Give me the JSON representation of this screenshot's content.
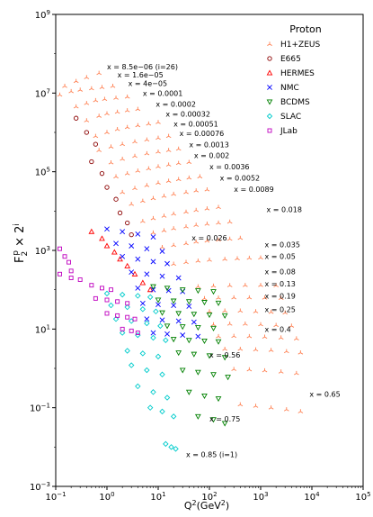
{
  "chart_data": {
    "type": "scatter",
    "title": "",
    "xlabel": "Q^2(GeV^2)",
    "ylabel": "F_2^p × 2^i",
    "xscale": "log",
    "yscale": "log",
    "xlim": [
      0.1,
      100000
    ],
    "ylim": [
      0.001,
      1000000000
    ],
    "x_ticks": [
      "10^-1",
      "10^0",
      "10^1",
      "10^2",
      "10^3",
      "10^4",
      "10^5"
    ],
    "y_ticks": [
      "10^-3",
      "10^-1",
      "10^1",
      "10^3",
      "10^5",
      "10^7",
      "10^9"
    ],
    "grid": false,
    "legend": {
      "title": "Proton",
      "placement": "top-right",
      "entries": [
        {
          "name": "H1+ZEUS",
          "marker": "tri",
          "color": "#ff7f50"
        },
        {
          "name": "E665",
          "marker": "circle",
          "color": "#8b0000"
        },
        {
          "name": "HERMES",
          "marker": "triangle-up",
          "color": "#ff0000"
        },
        {
          "name": "NMC",
          "marker": "x",
          "color": "#0000ff"
        },
        {
          "name": "BCDMS",
          "marker": "triangle-down",
          "color": "#008000"
        },
        {
          "name": "SLAC",
          "marker": "diamond",
          "color": "#00cccc"
        },
        {
          "name": "JLab",
          "marker": "square",
          "color": "#bf00bf"
        }
      ]
    },
    "bins": [
      {
        "label": "x = 8.5e−06 (i=26)",
        "lx": 1.0,
        "ly": 40000000,
        "h1": [
          [
            0.15,
            15000000
          ],
          [
            0.25,
            20000000
          ],
          [
            0.4,
            25000000
          ],
          [
            0.7,
            32000000
          ]
        ]
      },
      {
        "label": "x = 1.6e−05",
        "lx": 1.6,
        "ly": 25000000,
        "h1": [
          [
            0.12,
            9000000
          ],
          [
            0.2,
            11000000
          ],
          [
            0.3,
            12000000
          ],
          [
            0.5,
            13000000
          ],
          [
            0.8,
            14000000
          ],
          [
            1.3,
            15000000
          ]
        ]
      },
      {
        "label": "x = 4e−05",
        "lx": 2.6,
        "ly": 15000000,
        "h1": [
          [
            0.25,
            4500000
          ],
          [
            0.4,
            5500000
          ],
          [
            0.6,
            6500000
          ],
          [
            0.9,
            7000000
          ],
          [
            1.5,
            7500000
          ],
          [
            2.5,
            8000000
          ]
        ]
      },
      {
        "label": "x = 0.0001",
        "lx": 5.0,
        "ly": 8500000,
        "h1": [
          [
            0.4,
            2000000
          ],
          [
            0.7,
            2600000
          ],
          [
            1.0,
            3000000
          ],
          [
            1.6,
            3300000
          ],
          [
            2.5,
            3600000
          ],
          [
            4.0,
            3900000
          ]
        ]
      },
      {
        "label": "x = 0.0002",
        "lx": 9.0,
        "ly": 4500000,
        "h1": [
          [
            0.6,
            800000
          ],
          [
            1.0,
            1000000
          ],
          [
            1.6,
            1200000
          ],
          [
            2.5,
            1350000
          ],
          [
            4.0,
            1500000
          ],
          [
            6.5,
            1650000
          ],
          [
            10,
            1800000
          ]
        ]
      },
      {
        "label": "x = 0.00032",
        "lx": 14,
        "ly": 2500000,
        "h1": [
          [
            0.7,
            350000
          ],
          [
            1.2,
            430000
          ],
          [
            2.0,
            500000
          ],
          [
            3.5,
            580000
          ],
          [
            6.0,
            650000
          ],
          [
            10,
            720000
          ],
          [
            16,
            800000
          ]
        ]
      },
      {
        "label": "x = 0.00051",
        "lx": 20,
        "ly": 1400000,
        "h1": [
          [
            1.2,
            170000
          ],
          [
            2.0,
            210000
          ],
          [
            3.5,
            250000
          ],
          [
            6.0,
            290000
          ],
          [
            10,
            320000
          ],
          [
            16,
            350000
          ],
          [
            25,
            380000
          ]
        ]
      },
      {
        "label": "x = 0.00076",
        "lx": 26,
        "ly": 800000,
        "h1": [
          [
            1.5,
            75000
          ],
          [
            2.5,
            90000
          ],
          [
            4.0,
            105000
          ],
          [
            6.5,
            120000
          ],
          [
            10,
            135000
          ],
          [
            16,
            150000
          ],
          [
            25,
            165000
          ],
          [
            40,
            175000
          ]
        ]
      },
      {
        "label": "x = 0.0013",
        "lx": 40,
        "ly": 420000,
        "h1": [
          [
            2.0,
            30000
          ],
          [
            3.5,
            38000
          ],
          [
            6.0,
            45000
          ],
          [
            10,
            52000
          ],
          [
            16,
            58000
          ],
          [
            25,
            64000
          ],
          [
            40,
            70000
          ],
          [
            65,
            75000
          ]
        ]
      },
      {
        "label": "x = 0.002",
        "lx": 50,
        "ly": 220000,
        "h1": [
          [
            3.0,
            15000
          ],
          [
            5.0,
            18000
          ],
          [
            8.0,
            21000
          ],
          [
            13,
            24000
          ],
          [
            20,
            27000
          ],
          [
            35,
            30000
          ],
          [
            55,
            33000
          ],
          [
            90,
            35000
          ]
        ]
      },
      {
        "label": "x = 0.0036",
        "lx": 100,
        "ly": 115000,
        "h1": [
          [
            5,
            5500
          ],
          [
            8,
            6500
          ],
          [
            13,
            7500
          ],
          [
            20,
            8500
          ],
          [
            35,
            9500
          ],
          [
            55,
            10500
          ],
          [
            90,
            11500
          ],
          [
            150,
            12500
          ]
        ]
      },
      {
        "label": "x = 0.0052",
        "lx": 160,
        "ly": 60000,
        "h1": [
          [
            8,
            2800
          ],
          [
            13,
            3200
          ],
          [
            20,
            3600
          ],
          [
            35,
            4000
          ],
          [
            55,
            4400
          ],
          [
            90,
            4700
          ],
          [
            150,
            5000
          ],
          [
            250,
            5300
          ]
        ]
      },
      {
        "label": "x = 0.0089",
        "lx": 300,
        "ly": 31000,
        "h1": [
          [
            12,
            1200
          ],
          [
            20,
            1350
          ],
          [
            35,
            1500
          ],
          [
            55,
            1650
          ],
          [
            90,
            1750
          ],
          [
            150,
            1850
          ],
          [
            250,
            1950
          ],
          [
            400,
            2050
          ]
        ]
      },
      {
        "label": "x = 0.018",
        "lx": 1300,
        "ly": 9500,
        "h1": [
          [
            20,
            450
          ],
          [
            35,
            500
          ],
          [
            60,
            540
          ],
          [
            100,
            570
          ],
          [
            200,
            600
          ],
          [
            350,
            620
          ],
          [
            600,
            640
          ],
          [
            1000,
            650
          ]
        ]
      },
      {
        "label": "x = 0.026",
        "lx": 45,
        "ly": 1800,
        "h1": []
      },
      {
        "label": "x = 0.035",
        "lx": 1200,
        "ly": 1200,
        "h1": [
          [
            60,
            120
          ],
          [
            120,
            125
          ],
          [
            250,
            128
          ],
          [
            500,
            130
          ],
          [
            1000,
            130
          ],
          [
            2000,
            128
          ]
        ]
      },
      {
        "label": "x = 0.05",
        "lx": 1200,
        "ly": 600,
        "h1": [
          [
            80,
            60
          ],
          [
            150,
            62
          ],
          [
            300,
            63
          ],
          [
            600,
            63
          ],
          [
            1200,
            62
          ],
          [
            2500,
            61
          ]
        ]
      },
      {
        "label": "x = 0.08",
        "lx": 1200,
        "ly": 250,
        "h1": [
          [
            100,
            28
          ],
          [
            200,
            29
          ],
          [
            400,
            29
          ],
          [
            800,
            28
          ],
          [
            1600,
            27
          ],
          [
            3000,
            26
          ]
        ]
      },
      {
        "label": "x = 0.13",
        "lx": 1200,
        "ly": 120,
        "h1": [
          [
            120,
            13
          ],
          [
            250,
            13.5
          ],
          [
            500,
            13.5
          ],
          [
            1000,
            13
          ],
          [
            2000,
            12.5
          ],
          [
            4000,
            12
          ]
        ]
      },
      {
        "label": "x = 0.19",
        "lx": 1200,
        "ly": 60,
        "h1": [
          [
            150,
            6.5
          ],
          [
            300,
            6.6
          ],
          [
            600,
            6.5
          ],
          [
            1200,
            6.3
          ],
          [
            2500,
            6.0
          ],
          [
            5000,
            5.7
          ]
        ]
      },
      {
        "label": "x = 0.25",
        "lx": 1200,
        "ly": 27,
        "h1": [
          [
            200,
            3.1
          ],
          [
            400,
            3.1
          ],
          [
            800,
            3.0
          ],
          [
            1600,
            2.9
          ],
          [
            3200,
            2.7
          ],
          [
            6000,
            2.5
          ]
        ]
      },
      {
        "label": "x = 0.4",
        "lx": 1200,
        "ly": 8.5,
        "h1": [
          [
            300,
            0.95
          ],
          [
            600,
            0.93
          ],
          [
            1200,
            0.88
          ],
          [
            2500,
            0.82
          ],
          [
            5000,
            0.75
          ]
        ]
      },
      {
        "label": "x = 0.56",
        "lx": 100,
        "ly": 1.9,
        "h1": []
      },
      {
        "label": "x = 0.65",
        "lx": 9000,
        "ly": 0.19,
        "h1": [
          [
            400,
            0.12
          ],
          [
            800,
            0.11
          ],
          [
            1600,
            0.1
          ],
          [
            3200,
            0.09
          ],
          [
            6000,
            0.08
          ]
        ]
      },
      {
        "label": "x = 0.75",
        "lx": 100,
        "ly": 0.045,
        "h1": []
      },
      {
        "label": "x = 0.85 (i=1)",
        "lx": 35,
        "ly": 0.0055,
        "h1": []
      }
    ],
    "low_q2_series": {
      "E665": [
        [
          0.25,
          2300000
        ],
        [
          0.4,
          1000000
        ],
        [
          0.6,
          500000
        ],
        [
          0.5,
          180000
        ],
        [
          0.8,
          90000
        ],
        [
          1.0,
          40000
        ],
        [
          1.5,
          20000
        ],
        [
          1.8,
          9000
        ],
        [
          2.5,
          5000
        ],
        [
          3.0,
          2500
        ]
      ],
      "HERMES": [
        [
          0.5,
          3000
        ],
        [
          0.8,
          2000
        ],
        [
          1.0,
          1300
        ],
        [
          1.4,
          900
        ],
        [
          1.8,
          600
        ],
        [
          2.5,
          400
        ],
        [
          3.5,
          250
        ],
        [
          5,
          150
        ],
        [
          7,
          100
        ]
      ],
      "NMC": [
        [
          1.0,
          3500
        ],
        [
          2,
          3000
        ],
        [
          4,
          2600
        ],
        [
          8,
          2200
        ],
        [
          1.5,
          1500
        ],
        [
          3,
          1300
        ],
        [
          6,
          1100
        ],
        [
          12,
          950
        ],
        [
          2,
          700
        ],
        [
          4,
          600
        ],
        [
          8,
          520
        ],
        [
          15,
          460
        ],
        [
          3,
          280
        ],
        [
          6,
          250
        ],
        [
          12,
          220
        ],
        [
          25,
          200
        ],
        [
          4,
          110
        ],
        [
          8,
          100
        ],
        [
          16,
          95
        ],
        [
          30,
          90
        ],
        [
          5,
          45
        ],
        [
          10,
          42
        ],
        [
          20,
          40
        ],
        [
          40,
          38
        ],
        [
          6,
          18
        ],
        [
          12,
          17
        ],
        [
          25,
          16
        ],
        [
          50,
          15
        ],
        [
          8,
          8
        ],
        [
          15,
          7.5
        ],
        [
          30,
          7
        ],
        [
          60,
          6.5
        ]
      ],
      "BCDMS": [
        [
          8,
          120
        ],
        [
          15,
          110
        ],
        [
          30,
          100
        ],
        [
          60,
          95
        ],
        [
          120,
          90
        ],
        [
          10,
          55
        ],
        [
          20,
          52
        ],
        [
          40,
          50
        ],
        [
          80,
          48
        ],
        [
          150,
          46
        ],
        [
          12,
          26
        ],
        [
          25,
          25
        ],
        [
          50,
          24
        ],
        [
          100,
          23
        ],
        [
          200,
          22
        ],
        [
          15,
          12
        ],
        [
          30,
          11.5
        ],
        [
          60,
          11
        ],
        [
          120,
          10.5
        ],
        [
          20,
          5.5
        ],
        [
          40,
          5.2
        ],
        [
          80,
          5.0
        ],
        [
          150,
          4.8
        ],
        [
          25,
          2.5
        ],
        [
          50,
          2.3
        ],
        [
          100,
          2.1
        ],
        [
          200,
          1.9
        ],
        [
          30,
          0.9
        ],
        [
          60,
          0.8
        ],
        [
          120,
          0.7
        ],
        [
          230,
          0.6
        ],
        [
          40,
          0.25
        ],
        [
          80,
          0.2
        ],
        [
          150,
          0.17
        ],
        [
          60,
          0.06
        ],
        [
          120,
          0.05
        ],
        [
          200,
          0.04
        ]
      ],
      "SLAC": [
        [
          1,
          80
        ],
        [
          2,
          75
        ],
        [
          4,
          70
        ],
        [
          7,
          65
        ],
        [
          1.2,
          40
        ],
        [
          2.5,
          36
        ],
        [
          5,
          32
        ],
        [
          9,
          28
        ],
        [
          1.5,
          18
        ],
        [
          3,
          16
        ],
        [
          6,
          14
        ],
        [
          11,
          12
        ],
        [
          2,
          8
        ],
        [
          4,
          7
        ],
        [
          8,
          6
        ],
        [
          14,
          5.2
        ],
        [
          2.5,
          2.8
        ],
        [
          5,
          2.4
        ],
        [
          10,
          2.0
        ],
        [
          3,
          1.2
        ],
        [
          6,
          0.9
        ],
        [
          12,
          0.7
        ],
        [
          4,
          0.35
        ],
        [
          8,
          0.25
        ],
        [
          15,
          0.18
        ],
        [
          7,
          0.1
        ],
        [
          12,
          0.08
        ],
        [
          20,
          0.06
        ],
        [
          14,
          0.012
        ],
        [
          18,
          0.01
        ],
        [
          22,
          0.009
        ]
      ],
      "JLab": [
        [
          0.12,
          1100
        ],
        [
          0.15,
          700
        ],
        [
          0.18,
          500
        ],
        [
          0.2,
          300
        ],
        [
          0.12,
          250
        ],
        [
          0.2,
          200
        ],
        [
          0.3,
          180
        ],
        [
          0.5,
          130
        ],
        [
          0.8,
          110
        ],
        [
          1.2,
          100
        ],
        [
          0.6,
          60
        ],
        [
          1.0,
          55
        ],
        [
          1.6,
          50
        ],
        [
          2.5,
          45
        ],
        [
          1.0,
          25
        ],
        [
          1.6,
          22
        ],
        [
          2.5,
          20
        ],
        [
          3.5,
          18
        ],
        [
          2.0,
          10
        ],
        [
          3.0,
          9
        ],
        [
          4.0,
          8
        ]
      ]
    }
  }
}
